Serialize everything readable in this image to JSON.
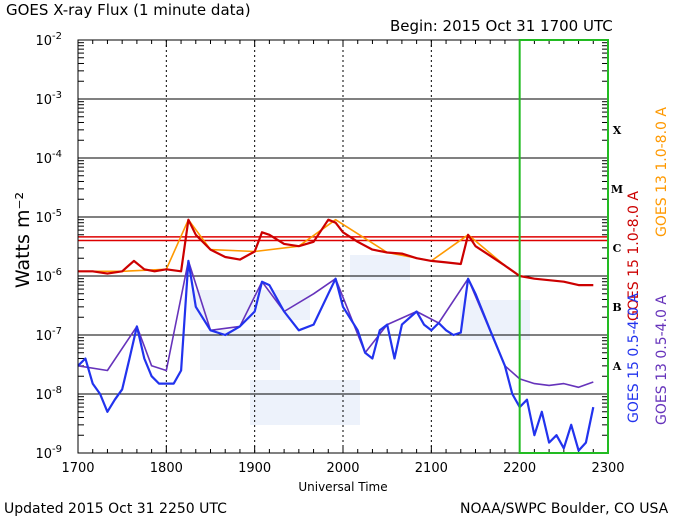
{
  "header": {
    "title": "GOES X-ray Flux (1 minute data)",
    "begin": "Begin: 2015 Oct 31 1700 UTC"
  },
  "footer": {
    "updated": "Updated 2015 Oct 31 2250 UTC",
    "credit": "NOAA/SWPC Boulder, CO USA"
  },
  "colors": {
    "long_15": "#cc0000",
    "long_13": "#ff9900",
    "short_15": "#2233ee",
    "short_13": "#6633bb",
    "highlight_box": "#22bb22",
    "threshold_line": "#dd0000"
  },
  "chart_data": {
    "type": "line",
    "log_scale_y": true,
    "xlabel": "Universal Time",
    "ylabel": "Watts m⁻²",
    "xlim": [
      1700,
      2300
    ],
    "ylim": [
      1e-09,
      0.01
    ],
    "x_ticks": [
      "1700",
      "1800",
      "1900",
      "2000",
      "2100",
      "2200",
      "2300"
    ],
    "y_ticks": [
      {
        "base": "10",
        "exp": "-2",
        "value": 0.01
      },
      {
        "base": "10",
        "exp": "-3",
        "value": 0.001
      },
      {
        "base": "10",
        "exp": "-4",
        "value": 0.0001
      },
      {
        "base": "10",
        "exp": "-5",
        "value": 1e-05
      },
      {
        "base": "10",
        "exp": "-6",
        "value": 1e-06
      },
      {
        "base": "10",
        "exp": "-7",
        "value": 1e-07
      },
      {
        "base": "10",
        "exp": "-8",
        "value": 1e-08
      },
      {
        "base": "10",
        "exp": "-9",
        "value": 1e-09
      }
    ],
    "flare_classes": [
      {
        "label": "X",
        "value": 0.0003
      },
      {
        "label": "M",
        "value": 3e-05
      },
      {
        "label": "C",
        "value": 3e-06
      },
      {
        "label": "B",
        "value": 3e-07
      },
      {
        "label": "A",
        "value": 3e-08
      }
    ],
    "thresholds": [
      4e-06,
      4.6e-06
    ],
    "highlight": [
      2200,
      2300
    ],
    "series": [
      {
        "name": "GOES 15 1.0-8.0 A",
        "x": [
          "17:00",
          "17:10",
          "17:20",
          "17:30",
          "17:38",
          "17:45",
          "17:52",
          "18:00",
          "18:10",
          "18:15",
          "18:20",
          "18:30",
          "18:40",
          "18:50",
          "19:00",
          "19:05",
          "19:10",
          "19:20",
          "19:30",
          "19:40",
          "19:50",
          "19:55",
          "20:00",
          "20:10",
          "20:20",
          "20:30",
          "20:40",
          "20:50",
          "21:00",
          "21:10",
          "21:20",
          "21:25",
          "21:30",
          "21:40",
          "21:50",
          "22:00",
          "22:10",
          "22:20",
          "22:30",
          "22:40",
          "22:50"
        ],
        "y": [
          1.2e-06,
          1.2e-06,
          1.1e-06,
          1.2e-06,
          1.8e-06,
          1.3e-06,
          1.2e-06,
          1.3e-06,
          1.2e-06,
          9e-06,
          5e-06,
          2.8e-06,
          2.1e-06,
          1.9e-06,
          2.6e-06,
          5.5e-06,
          5e-06,
          3.5e-06,
          3.2e-06,
          3.8e-06,
          9e-06,
          8e-06,
          5.5e-06,
          3.8e-06,
          2.8e-06,
          2.5e-06,
          2.4e-06,
          2e-06,
          1.8e-06,
          1.7e-06,
          1.6e-06,
          5e-06,
          3.2e-06,
          2.2e-06,
          1.5e-06,
          1e-06,
          9e-07,
          8.5e-07,
          8e-07,
          7e-07,
          7e-07
        ]
      },
      {
        "name": "GOES 13 1.0-8.0 A",
        "x": [
          "17:00",
          "17:30",
          "18:00",
          "18:15",
          "18:30",
          "19:00",
          "19:30",
          "19:55",
          "20:30",
          "21:00",
          "21:25",
          "21:50",
          "22:00"
        ],
        "y": [
          1.2e-06,
          1.2e-06,
          1.3e-06,
          9e-06,
          2.8e-06,
          2.6e-06,
          3.2e-06,
          9e-06,
          2.5e-06,
          1.8e-06,
          5e-06,
          1.5e-06,
          1e-06
        ]
      },
      {
        "name": "GOES 15 0.5-4.0 A",
        "x": [
          "17:00",
          "17:05",
          "17:10",
          "17:15",
          "17:20",
          "17:25",
          "17:30",
          "17:35",
          "17:40",
          "17:45",
          "17:50",
          "17:55",
          "18:00",
          "18:05",
          "18:10",
          "18:15",
          "18:20",
          "18:30",
          "18:40",
          "18:50",
          "19:00",
          "19:05",
          "19:10",
          "19:20",
          "19:30",
          "19:40",
          "19:50",
          "19:55",
          "20:00",
          "20:10",
          "20:15",
          "20:20",
          "20:25",
          "20:30",
          "20:35",
          "20:40",
          "20:50",
          "20:55",
          "21:00",
          "21:05",
          "21:10",
          "21:15",
          "21:20",
          "21:25",
          "21:30",
          "21:40",
          "21:50",
          "21:55",
          "22:00",
          "22:05",
          "22:10",
          "22:15",
          "22:20",
          "22:25",
          "22:30",
          "22:35",
          "22:40",
          "22:45",
          "22:50"
        ],
        "y": [
          3e-08,
          4e-08,
          1.5e-08,
          1e-08,
          5e-09,
          8e-09,
          1.2e-08,
          4e-08,
          1.4e-07,
          4e-08,
          2e-08,
          1.5e-08,
          1.5e-08,
          1.5e-08,
          2.5e-08,
          1.8e-06,
          3e-07,
          1.2e-07,
          1e-07,
          1.4e-07,
          2.5e-07,
          8e-07,
          7e-07,
          2.5e-07,
          1.2e-07,
          1.5e-07,
          5e-07,
          9e-07,
          3e-07,
          1.2e-07,
          5e-08,
          4e-08,
          1.2e-07,
          1.5e-07,
          4e-08,
          1.5e-07,
          2.5e-07,
          1.5e-07,
          1.2e-07,
          1.6e-07,
          1.2e-07,
          1e-07,
          1.1e-07,
          9e-07,
          5e-07,
          1.2e-07,
          3e-08,
          1e-08,
          6e-09,
          8e-09,
          2e-09,
          5e-09,
          1.5e-09,
          2e-09,
          1.2e-09,
          3e-09,
          1.1e-09,
          1.5e-09,
          6e-09
        ]
      },
      {
        "name": "GOES 13 0.5-4.0 A",
        "x": [
          "17:00",
          "17:20",
          "17:40",
          "17:50",
          "18:00",
          "18:15",
          "18:30",
          "18:50",
          "19:05",
          "19:20",
          "19:40",
          "19:55",
          "20:15",
          "20:30",
          "20:50",
          "21:05",
          "21:25",
          "21:50",
          "22:00",
          "22:10",
          "22:20",
          "22:30",
          "22:40",
          "22:50"
        ],
        "y": [
          3e-08,
          2.5e-08,
          1.4e-07,
          3e-08,
          2.5e-08,
          1.8e-06,
          1.2e-07,
          1.4e-07,
          8e-07,
          2.5e-07,
          5e-07,
          9e-07,
          5e-08,
          1.5e-07,
          2.5e-07,
          1.6e-07,
          9e-07,
          3e-08,
          1.8e-08,
          1.5e-08,
          1.4e-08,
          1.5e-08,
          1.3e-08,
          1.6e-08
        ]
      }
    ]
  }
}
